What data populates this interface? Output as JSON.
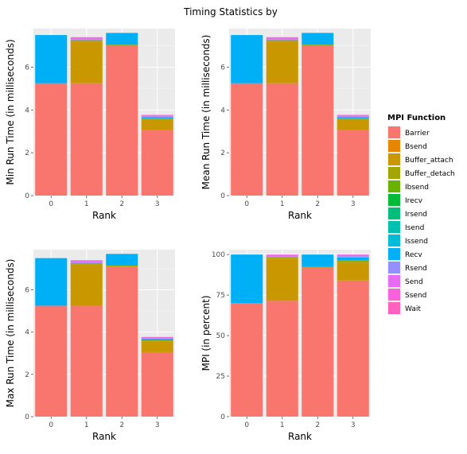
{
  "title": "Timing Statistics by",
  "legend": {
    "title": "MPI Function",
    "entries": [
      {
        "name": "Barrier",
        "color": "#f8766d"
      },
      {
        "name": "Bsend",
        "color": "#e58700"
      },
      {
        "name": "Buffer_attach",
        "color": "#c99800"
      },
      {
        "name": "Buffer_detach",
        "color": "#a3a500"
      },
      {
        "name": "Ibsend",
        "color": "#6bb100"
      },
      {
        "name": "Irecv",
        "color": "#00ba38"
      },
      {
        "name": "Irsend",
        "color": "#00bf7d"
      },
      {
        "name": "Isend",
        "color": "#00c0af"
      },
      {
        "name": "Issend",
        "color": "#00bcd8"
      },
      {
        "name": "Recv",
        "color": "#00b0f6"
      },
      {
        "name": "Rsend",
        "color": "#9590ff"
      },
      {
        "name": "Send",
        "color": "#e76bf3"
      },
      {
        "name": "Ssend",
        "color": "#fa62db"
      },
      {
        "name": "Wait",
        "color": "#ff62bc"
      }
    ]
  },
  "chart_data": [
    {
      "type": "bar",
      "stacked": true,
      "xlabel": "Rank",
      "ylabel": "Min Run Time (in milliseconds)",
      "categories": [
        "0",
        "1",
        "2",
        "3"
      ],
      "ylim": [
        0,
        7.8
      ],
      "yticks": [
        0,
        2,
        4,
        6,
        8
      ],
      "series": [
        {
          "name": "Barrier",
          "values": [
            5.25,
            5.25,
            7.0,
            3.05
          ]
        },
        {
          "name": "Buffer_attach",
          "values": [
            0,
            1.95,
            0,
            0.5
          ]
        },
        {
          "name": "Buffer_detach",
          "values": [
            0,
            0.06,
            0.05,
            0.06
          ]
        },
        {
          "name": "Recv",
          "values": [
            2.25,
            0,
            0.55,
            0.06
          ]
        },
        {
          "name": "Rsend",
          "values": [
            0,
            0.03,
            0,
            0.03
          ]
        },
        {
          "name": "Send",
          "values": [
            0,
            0.08,
            0,
            0.04
          ]
        },
        {
          "name": "Ssend",
          "values": [
            0,
            0.03,
            0,
            0.03
          ]
        }
      ]
    },
    {
      "type": "bar",
      "stacked": true,
      "xlabel": "Rank",
      "ylabel": "Mean Run Time (in milliseconds)",
      "categories": [
        "0",
        "1",
        "2",
        "3"
      ],
      "ylim": [
        0,
        7.8
      ],
      "yticks": [
        0,
        2,
        4,
        6,
        8
      ],
      "series": [
        {
          "name": "Barrier",
          "values": [
            5.25,
            5.25,
            7.0,
            3.05
          ]
        },
        {
          "name": "Buffer_attach",
          "values": [
            0,
            1.95,
            0,
            0.5
          ]
        },
        {
          "name": "Buffer_detach",
          "values": [
            0,
            0.06,
            0.05,
            0.06
          ]
        },
        {
          "name": "Recv",
          "values": [
            2.25,
            0,
            0.55,
            0.06
          ]
        },
        {
          "name": "Rsend",
          "values": [
            0,
            0.03,
            0,
            0.03
          ]
        },
        {
          "name": "Send",
          "values": [
            0,
            0.08,
            0,
            0.04
          ]
        },
        {
          "name": "Ssend",
          "values": [
            0,
            0.03,
            0,
            0.03
          ]
        }
      ]
    },
    {
      "type": "bar",
      "stacked": true,
      "xlabel": "Rank",
      "ylabel": "Max Run Time (in milliseconds)",
      "categories": [
        "0",
        "1",
        "2",
        "3"
      ],
      "ylim": [
        0,
        7.9
      ],
      "yticks": [
        0,
        2,
        4,
        6,
        8
      ],
      "series": [
        {
          "name": "Barrier",
          "values": [
            5.25,
            5.25,
            7.1,
            3.05
          ]
        },
        {
          "name": "Buffer_attach",
          "values": [
            0,
            1.95,
            0,
            0.5
          ]
        },
        {
          "name": "Buffer_detach",
          "values": [
            0,
            0.06,
            0.05,
            0.06
          ]
        },
        {
          "name": "Recv",
          "values": [
            2.25,
            0,
            0.55,
            0.06
          ]
        },
        {
          "name": "Rsend",
          "values": [
            0,
            0.03,
            0,
            0.03
          ]
        },
        {
          "name": "Send",
          "values": [
            0,
            0.08,
            0,
            0.04
          ]
        },
        {
          "name": "Ssend",
          "values": [
            0,
            0.03,
            0,
            0.03
          ]
        }
      ]
    },
    {
      "type": "bar",
      "stacked": true,
      "xlabel": "Rank",
      "ylabel": "MPI (in percent)",
      "categories": [
        "0",
        "1",
        "2",
        "3"
      ],
      "ylim": [
        0,
        103
      ],
      "yticks": [
        0,
        25,
        50,
        75,
        100
      ],
      "series": [
        {
          "name": "Barrier",
          "values": [
            70,
            71.5,
            92,
            84
          ]
        },
        {
          "name": "Buffer_attach",
          "values": [
            0,
            26,
            0,
            11
          ]
        },
        {
          "name": "Buffer_detach",
          "values": [
            0,
            0.8,
            0.5,
            1.6
          ]
        },
        {
          "name": "Recv",
          "values": [
            30,
            0,
            7.5,
            1.6
          ]
        },
        {
          "name": "Rsend",
          "values": [
            0,
            0.4,
            0,
            0.8
          ]
        },
        {
          "name": "Send",
          "values": [
            0,
            1.0,
            0,
            0.8
          ]
        },
        {
          "name": "Ssend",
          "values": [
            0,
            0.3,
            0,
            0.2
          ]
        }
      ]
    }
  ]
}
